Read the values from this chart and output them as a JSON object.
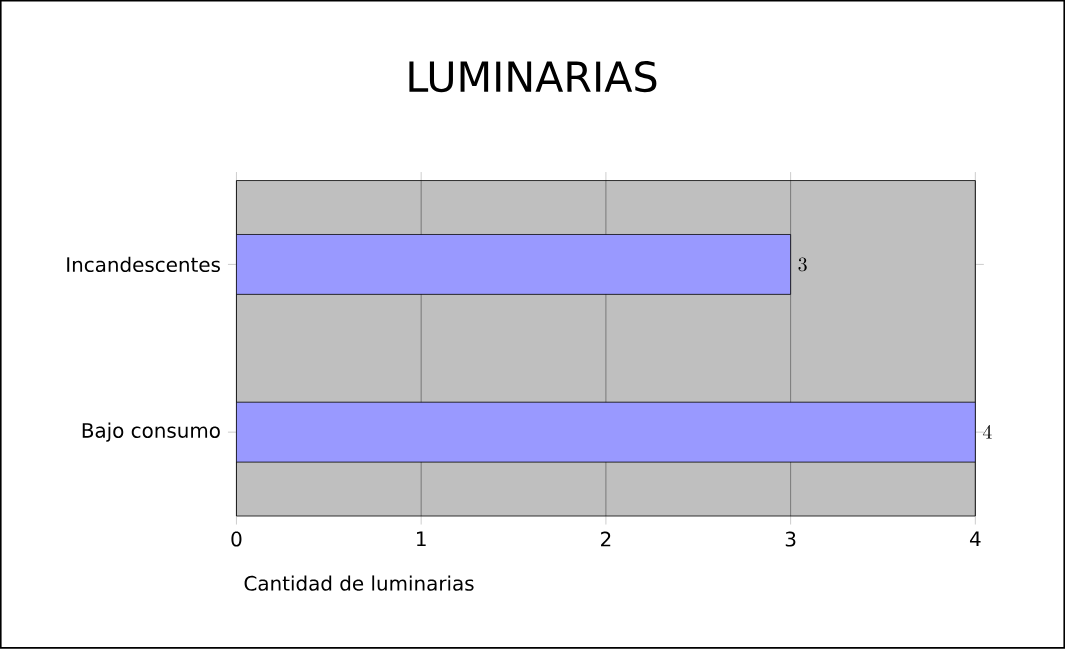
{
  "chart_data": {
    "type": "bar",
    "orientation": "horizontal",
    "title": "LUMINARIAS",
    "xlabel": "Cantidad de luminarias",
    "categories": [
      "Incandescentes",
      "Bajo consumo"
    ],
    "values": [
      3,
      4
    ],
    "color": "#9999ff",
    "xlim": [
      0,
      4
    ],
    "xticks": [
      0,
      1,
      2,
      3,
      4
    ],
    "grid": "x",
    "data_labels": true
  }
}
